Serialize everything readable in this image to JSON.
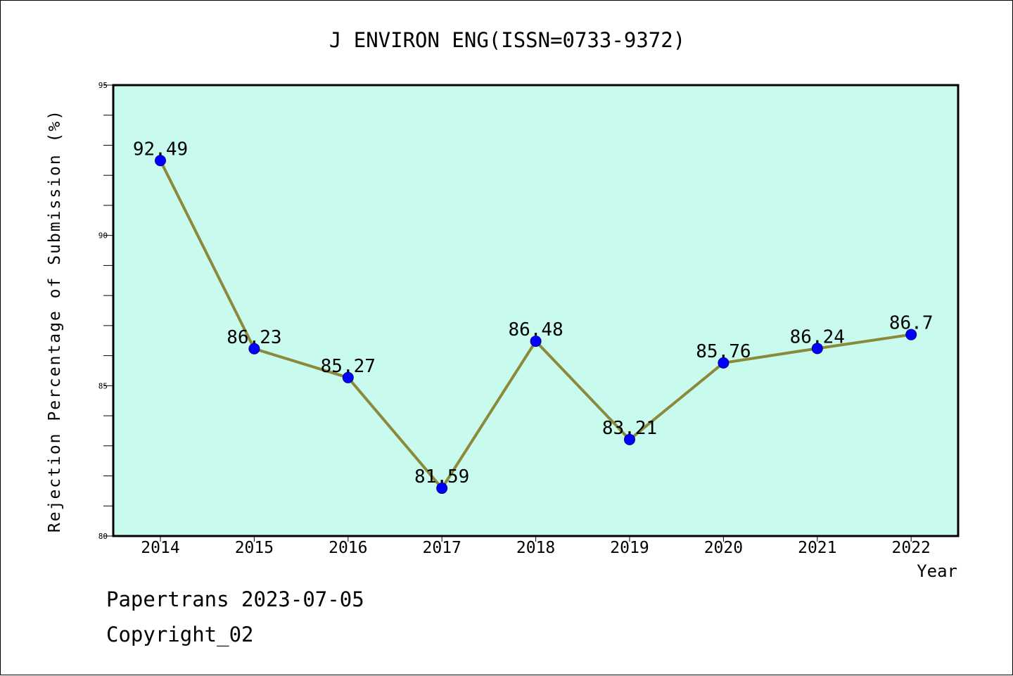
{
  "chart_data": {
    "type": "line",
    "title": "J ENVIRON ENG(ISSN=0733-9372)",
    "xlabel": "Year",
    "ylabel": "Rejection Percentage of Submission (%)",
    "categories": [
      "2014",
      "2015",
      "2016",
      "2017",
      "2018",
      "2019",
      "2020",
      "2021",
      "2022"
    ],
    "values": [
      92.49,
      86.23,
      85.27,
      81.59,
      86.48,
      83.21,
      85.76,
      86.24,
      86.7
    ],
    "data_labels": [
      "92.49",
      "86.23",
      "85.27",
      "81.59",
      "86.48",
      "83.21",
      "85.76",
      "86.24",
      "86.7"
    ],
    "ylim": [
      80,
      95
    ],
    "yticks": [
      "80",
      "85",
      "90",
      "95"
    ],
    "grid": false,
    "colors": {
      "plot_background": "#c8fbee",
      "line": "#8b8a3a",
      "marker": "#0000ff"
    }
  },
  "footer": {
    "source": "Papertrans 2023-07-05",
    "copyright": "Copyright_02"
  }
}
